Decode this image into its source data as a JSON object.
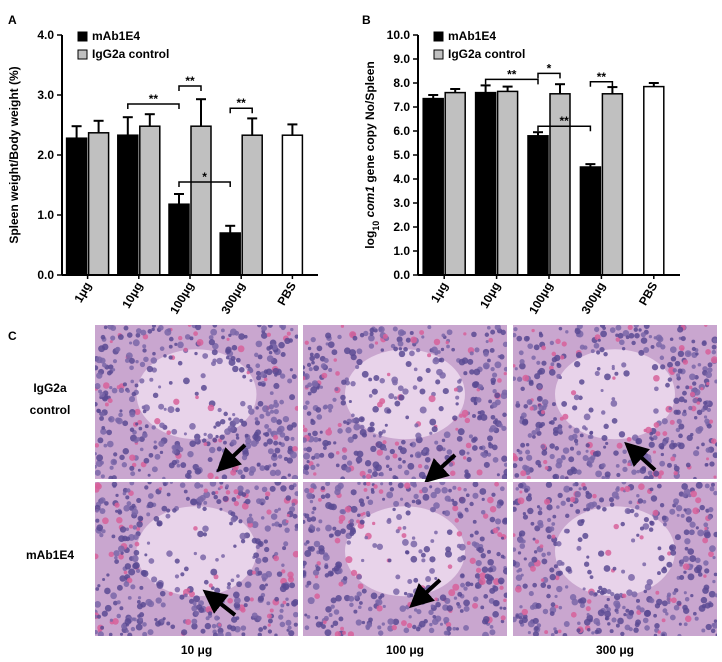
{
  "chart_data": [
    {
      "type": "bar",
      "panel_label": "A",
      "ylabel": "Spleen weight/Body weight (%)",
      "categories": [
        "1μg",
        "10μg",
        "100μg",
        "300μg",
        "PBS"
      ],
      "series": [
        {
          "name": "mAb1E4",
          "color": "#000000",
          "values": [
            2.28,
            2.33,
            1.18,
            0.7,
            null
          ],
          "errors": [
            0.2,
            0.3,
            0.17,
            0.12,
            null
          ]
        },
        {
          "name": "IgG2a control",
          "color": "#c0c0c0",
          "values": [
            2.37,
            2.48,
            2.48,
            2.33,
            null
          ],
          "errors": [
            0.2,
            0.2,
            0.45,
            0.28,
            null
          ]
        },
        {
          "color": "#ffffff",
          "values": [
            null,
            null,
            null,
            null,
            2.33
          ],
          "errors": [
            null,
            null,
            null,
            null,
            0.18
          ]
        }
      ],
      "ylim": [
        0,
        4
      ],
      "yticks": [
        {
          "value": 0,
          "label": "0.0"
        },
        {
          "value": 1,
          "label": "1.0"
        },
        {
          "value": 2,
          "label": "2.0"
        },
        {
          "value": 3,
          "label": "3.0"
        },
        {
          "value": 4,
          "label": "4.0"
        }
      ],
      "annotations": [
        {
          "text": "**"
        },
        {
          "text": "**"
        },
        {
          "text": "*"
        },
        {
          "text": "**"
        }
      ]
    },
    {
      "type": "bar",
      "panel_label": "B",
      "ylabel_parts": [
        "log",
        "10",
        " com1",
        " gene copy No/Spleen"
      ],
      "categories": [
        "1μg",
        "10μg",
        "100μg",
        "300μg",
        "PBS"
      ],
      "series": [
        {
          "name": "mAb1E4",
          "color": "#000000",
          "values": [
            7.35,
            7.6,
            5.8,
            4.5,
            null
          ],
          "errors": [
            0.15,
            0.3,
            0.15,
            0.12,
            null
          ]
        },
        {
          "name": "IgG2a control",
          "color": "#c0c0c0",
          "values": [
            7.6,
            7.65,
            7.55,
            7.55,
            null
          ],
          "errors": [
            0.15,
            0.2,
            0.4,
            0.28,
            null
          ]
        },
        {
          "color": "#ffffff",
          "values": [
            null,
            null,
            null,
            null,
            7.85
          ],
          "errors": [
            null,
            null,
            null,
            null,
            0.15
          ]
        }
      ],
      "ylim": [
        0,
        10
      ],
      "yticks": [
        {
          "value": 0,
          "label": "0.0"
        },
        {
          "value": 1,
          "label": "1.0"
        },
        {
          "value": 2,
          "label": "2.0"
        },
        {
          "value": 3,
          "label": "3.0"
        },
        {
          "value": 4,
          "label": "4.0"
        },
        {
          "value": 5,
          "label": "5.0"
        },
        {
          "value": 6,
          "label": "6.0"
        },
        {
          "value": 7,
          "label": "7.0"
        },
        {
          "value": 8,
          "label": "8.0"
        },
        {
          "value": 9,
          "label": "9.0"
        },
        {
          "value": 10,
          "label": "10.0"
        }
      ],
      "annotations": [
        {
          "text": "**"
        },
        {
          "text": "*"
        },
        {
          "text": "**"
        },
        {
          "text": "**"
        }
      ]
    }
  ],
  "panel_c": {
    "label": "C",
    "row_labels": [
      [
        "IgG2a",
        "control"
      ],
      [
        "mAb1E4"
      ]
    ],
    "column_labels": [
      "10 μg",
      "100 μg",
      "300 μg"
    ]
  }
}
